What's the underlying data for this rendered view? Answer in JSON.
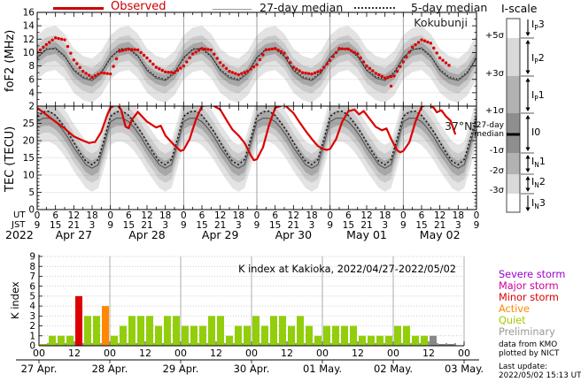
{
  "meta": {
    "year": "2022"
  },
  "legend": {
    "observed": "Observed",
    "median27": "27-day median",
    "median5": "5-day median"
  },
  "panels": {
    "fof2_label": "foF2 (MHz)",
    "tec_label": "TEC (TECU)",
    "station": "Kokubunji",
    "latitude": "37°N",
    "ut": "UT",
    "jst": "JST"
  },
  "colors": {
    "observed": "#dd0000",
    "observed_text": "#cc0000",
    "median27": "#555555",
    "median5": "#111111",
    "band_inner": "#a8a8a8",
    "band_mid": "#cbcbcb",
    "band_outer": "#e3e3e3",
    "day_grid": "#888888"
  },
  "iscale": {
    "title": "I-scale",
    "sigma": [
      "+5σ",
      "+3σ",
      "+1σ",
      "-1σ",
      "-2σ",
      "-3σ"
    ],
    "median_line1": "27-day",
    "median_line2": "median",
    "levels": [
      {
        "pre": "I",
        "sub": "P",
        "num": "3"
      },
      {
        "pre": "I",
        "sub": "P",
        "num": "2"
      },
      {
        "pre": "I",
        "sub": "P",
        "num": "1"
      },
      {
        "pre": "I",
        "sub": "",
        "num": "0"
      },
      {
        "pre": "I",
        "sub": "N",
        "num": "1"
      },
      {
        "pre": "I",
        "sub": "N",
        "num": "2"
      },
      {
        "pre": "I",
        "sub": "N",
        "num": "3"
      }
    ],
    "colors": {
      "i0": "#8e8e8e",
      "s1": "#b2b2b2",
      "s2": "#d9d9d9",
      "s3": "#ffffff"
    }
  },
  "storm_legend": {
    "items": [
      {
        "label": "Severe storm",
        "color": "#9900cc"
      },
      {
        "label": "Major storm",
        "color": "#cc0099"
      },
      {
        "label": "Minor storm",
        "color": "#dd0000"
      },
      {
        "label": "Active",
        "color": "#ff8800"
      },
      {
        "label": "Quiet",
        "color": "#a2cc00"
      },
      {
        "label": "Preliminary",
        "color": "#999999"
      }
    ]
  },
  "credits": {
    "line1": "data from KMO",
    "line2": "plotted by NICT",
    "update1": "Last update:",
    "update2": "2022/05/02 15:13 UT"
  },
  "time_axis": {
    "ut_cycle": [
      "0",
      "6",
      "12",
      "18"
    ],
    "ut_end": "0",
    "jst_cycle": [
      "9",
      "15",
      "21",
      "3"
    ],
    "jst_end": "9",
    "days": [
      "Apr 27",
      "Apr 28",
      "Apr 29",
      "Apr 30",
      "May 01",
      "May 02"
    ],
    "k_x_cycle": [
      "00",
      "12"
    ],
    "k_x_end": "00",
    "k_dates": [
      "27 Apr.",
      "28 Apr.",
      "29 Apr.",
      "30 Apr.",
      "01 May.",
      "02 May.",
      "03 May."
    ]
  },
  "chart_data": [
    {
      "type": "line",
      "id": "fof2",
      "ylabel": "foF2 (MHz)",
      "station": "Kokubunji",
      "ylim": [
        2,
        16
      ],
      "yticks": [
        16,
        14,
        12,
        10,
        8,
        6,
        4,
        2
      ],
      "x_unit": "hours UT from 2022-04-27 00:00",
      "sample_step_h": 3,
      "observed": [
        10.0,
        11.2,
        12.2,
        11.9,
        8.9,
        7.2,
        6.3,
        7.0,
        6.8,
        10.2,
        10.5,
        10.4,
        9.2,
        7.8,
        7.1,
        7.0,
        8.0,
        9.8,
        10.6,
        10.4,
        8.5,
        7.2,
        6.7,
        7.2,
        8.2,
        10.4,
        10.6,
        9.9,
        7.8,
        7.0,
        6.8,
        7.3,
        8.8,
        10.6,
        10.5,
        9.8,
        8.0,
        6.9,
        6.2,
        6.5,
        8.6,
        10.8,
        11.9,
        11.4,
        9.2,
        8.1,
        null,
        null,
        null
      ],
      "outliers": [
        {
          "h": 116,
          "v": 5.0
        }
      ],
      "median27_daily": [
        9.3,
        10.4,
        10.7,
        9.5,
        7.3,
        6.2,
        5.8,
        6.9
      ],
      "median5_daily": [
        9.1,
        10.6,
        10.5,
        9.4,
        7.5,
        6.4,
        6.0,
        7.1
      ],
      "band_halfwidth": {
        "inner": 0.9,
        "mid": 1.9,
        "outer": 3.3
      }
    },
    {
      "type": "line",
      "id": "tec",
      "ylabel": "TEC (TECU)",
      "label": "37°N",
      "ylim": [
        0,
        30
      ],
      "yticks": [
        25,
        20,
        15,
        10,
        5,
        0
      ],
      "x_unit": "hours UT from 2022-04-27 00:00",
      "median_step_h": 2,
      "observed_h": [
        0,
        2,
        4,
        6,
        9,
        12,
        15,
        17,
        19,
        21,
        23,
        24,
        26,
        27.5,
        29,
        30,
        31,
        33,
        36,
        39,
        40.5,
        42,
        45,
        47,
        48,
        50,
        52,
        54,
        57,
        60,
        62,
        64,
        66,
        68,
        70,
        71,
        72,
        74,
        76,
        78,
        81,
        84,
        86,
        88,
        90,
        92,
        94,
        95,
        96,
        98,
        100,
        102,
        104,
        105.5,
        107,
        109,
        111,
        113,
        114.5,
        116,
        118,
        119,
        120,
        122,
        124,
        126,
        128,
        130,
        131,
        132.5,
        134,
        135.5,
        137
      ],
      "observed_v": [
        29.5,
        28.2,
        26.8,
        25.5,
        23.5,
        21.2,
        20.0,
        19.3,
        19.6,
        22.5,
        27.5,
        29.5,
        30.6,
        29.0,
        24.0,
        23.6,
        26.0,
        28.3,
        25.5,
        23.8,
        24.3,
        21.5,
        18.6,
        17.0,
        17.3,
        20.5,
        26.0,
        30.0,
        30.5,
        29.0,
        26.0,
        23.2,
        21.5,
        19.3,
        15.8,
        14.3,
        14.6,
        18.0,
        24.5,
        29.5,
        30.4,
        28.0,
        25.3,
        22.8,
        20.5,
        18.4,
        17.5,
        17.3,
        17.6,
        20.5,
        25.5,
        28.5,
        29.0,
        27.6,
        28.6,
        26.3,
        24.0,
        23.0,
        23.5,
        20.5,
        17.2,
        16.6,
        17.0,
        19.5,
        25.5,
        29.8,
        30.5,
        29.5,
        28.2,
        28.8,
        27.0,
        25.8,
        22.0
      ],
      "median27_daily": [
        25.5,
        26.5,
        26.5,
        25.5,
        23.5,
        21.0,
        18.0,
        15.5,
        13.0,
        12.0,
        13.0,
        19.0
      ],
      "median5_daily": [
        27.0,
        28.3,
        28.5,
        27.3,
        25.0,
        22.5,
        19.5,
        16.5,
        14.0,
        13.0,
        14.5,
        20.5
      ],
      "band_halfwidth": {
        "inner": 2.2,
        "mid": 4.2,
        "outer": 6.8
      }
    },
    {
      "type": "bar",
      "id": "kindex",
      "title": "K index at Kakioka, 2022/04/27-2022/05/02",
      "ylabel": "K index",
      "ylim": [
        0,
        9
      ],
      "yticks": [
        0,
        1,
        2,
        3,
        4,
        5,
        6,
        7,
        8,
        9
      ],
      "bar_colors": {
        "q": "#92ce0c",
        "a": "#ff8800",
        "m": "#dd0000",
        "p": "#888888"
      },
      "days": [
        {
          "label": "27 Apr.",
          "values": [
            0,
            1,
            1,
            1,
            5,
            3,
            3,
            4
          ],
          "colors": [
            "q",
            "q",
            "q",
            "q",
            "m",
            "q",
            "q",
            "a"
          ]
        },
        {
          "label": "28 Apr.",
          "values": [
            1,
            2,
            3,
            3,
            3,
            2,
            3,
            3
          ],
          "colors": [
            "q",
            "q",
            "q",
            "q",
            "q",
            "q",
            "q",
            "q"
          ]
        },
        {
          "label": "29 Apr.",
          "values": [
            2,
            2,
            2,
            3,
            3,
            1,
            2,
            2
          ],
          "colors": [
            "q",
            "q",
            "q",
            "q",
            "q",
            "q",
            "q",
            "q"
          ]
        },
        {
          "label": "30 Apr.",
          "values": [
            3,
            2,
            3,
            3,
            2,
            3,
            2,
            1
          ],
          "colors": [
            "q",
            "q",
            "q",
            "q",
            "q",
            "q",
            "q",
            "q"
          ]
        },
        {
          "label": "01 May.",
          "values": [
            2,
            2,
            2,
            2,
            1,
            1,
            1,
            1
          ],
          "colors": [
            "q",
            "q",
            "q",
            "q",
            "q",
            "q",
            "q",
            "q"
          ]
        },
        {
          "label": "02 May.",
          "values": [
            2,
            2,
            1,
            1,
            1,
            0,
            0
          ],
          "colors": [
            "q",
            "q",
            "q",
            "q",
            "p",
            "p",
            "p"
          ]
        }
      ]
    }
  ]
}
